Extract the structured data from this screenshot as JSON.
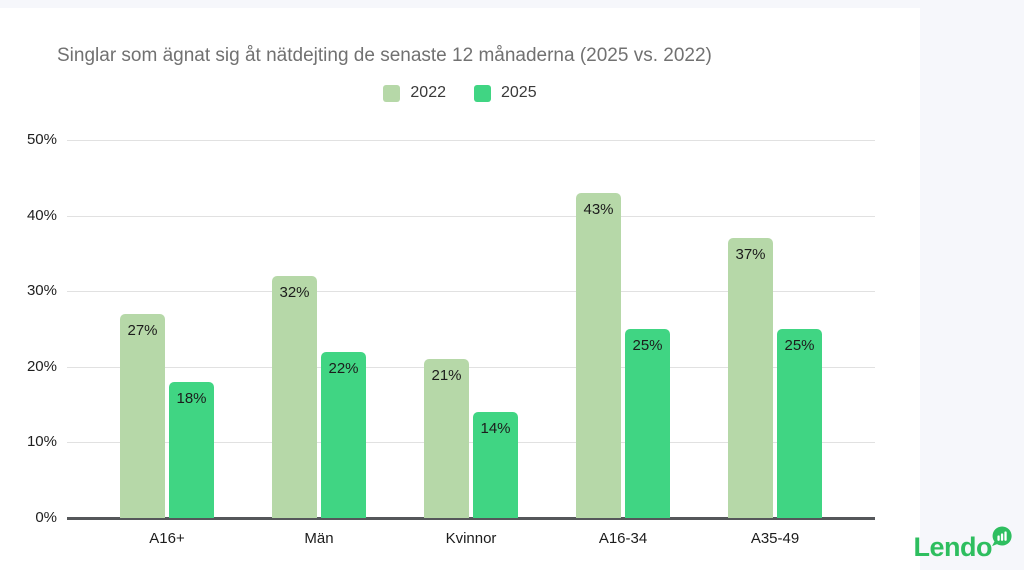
{
  "title": "Singlar som ägnat sig åt nätdejting de senaste 12 månaderna (2025 vs. 2022)",
  "branding": {
    "logo_text": "Lendo"
  },
  "colors": {
    "series_2022": "#b6d8a8",
    "series_2025": "#40d583",
    "page_background": "#f6f7fb",
    "card_background": "#ffffff",
    "gridline": "#e1e1e1",
    "axis": "#55575a",
    "title_text": "#717171",
    "label_text": "#1c1c1c",
    "logo_green": "#2ebe5f"
  },
  "chart_data": {
    "type": "bar",
    "title": "Singlar som ägnat sig åt nätdejting de senaste 12 månaderna (2025 vs. 2022)",
    "categories": [
      "A16+",
      "Män",
      "Kvinnor",
      "A16-34",
      "A35-49"
    ],
    "series": [
      {
        "name": "2022",
        "color": "#b6d8a8",
        "values": [
          27,
          32,
          21,
          43,
          37
        ]
      },
      {
        "name": "2025",
        "color": "#40d583",
        "values": [
          18,
          22,
          14,
          25,
          25
        ]
      }
    ],
    "value_suffix": "%",
    "xlabel": "",
    "ylabel": "",
    "ylim": [
      0,
      50
    ],
    "yticks": [
      "0%",
      "10%",
      "20%",
      "30%",
      "40%",
      "50%"
    ],
    "ytick_step": 10,
    "grid": true,
    "legend_position": "top"
  }
}
